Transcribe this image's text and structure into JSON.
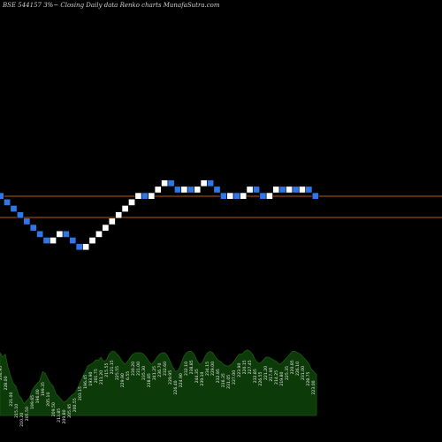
{
  "chart_data": {
    "type": "renko",
    "title": "BSE 544157 3%~  Closing Daily data  Renko  charts MunafaSutra.com",
    "reference_lines": [
      223.0,
      217.0
    ],
    "colors": {
      "background": "#000000",
      "up": "#ffffff",
      "down": "#2f77e6",
      "reference_line": "#b65a1a",
      "volume_fill": "#0c3a08",
      "volume_line": "#1f5a14"
    },
    "bricks": [
      "down",
      "down",
      "down",
      "down",
      "down",
      "down",
      "down",
      "down",
      "up",
      "up",
      "down",
      "down",
      "down",
      "up",
      "up",
      "up",
      "up",
      "up",
      "up",
      "up",
      "up",
      "up",
      "down",
      "up",
      "up",
      "up",
      "down",
      "down",
      "up",
      "down",
      "up",
      "up",
      "down",
      "down",
      "down",
      "up",
      "down",
      "up",
      "up",
      "down",
      "down",
      "up",
      "up",
      "down",
      "up",
      "down",
      "up",
      "down",
      "down"
    ],
    "volume": {
      "values": [
        43,
        40,
        42,
        33,
        27,
        22,
        20,
        14,
        12,
        8,
        10,
        12,
        17,
        20,
        22,
        24,
        30,
        29,
        25,
        22,
        20,
        15,
        13,
        11,
        9,
        10,
        12,
        14,
        15,
        18,
        22,
        26,
        30,
        34,
        35,
        36,
        38,
        38,
        40,
        37,
        38,
        42,
        44,
        44,
        42,
        40,
        37,
        35,
        37,
        40,
        42,
        43,
        43,
        43,
        42,
        40,
        37,
        35,
        37,
        40,
        42,
        43,
        43,
        41,
        37,
        33,
        30,
        31,
        35,
        40,
        43,
        44,
        44,
        42,
        38,
        35,
        36,
        40,
        43,
        44,
        43,
        40,
        38,
        37,
        35,
        34,
        34,
        35,
        37,
        40,
        42,
        42,
        44,
        45,
        44,
        42,
        38,
        36,
        36,
        38,
        40,
        40,
        39,
        38,
        37,
        35,
        36,
        38,
        40,
        42,
        44,
        44,
        43,
        42,
        40,
        38,
        36,
        32,
        30,
        28
      ],
      "labels": [
        "234.95",
        "228.00",
        "221.00",
        "215.10",
        "210.20",
        "205.50",
        "199.65",
        "196.00",
        "199.35",
        "205.10",
        "209.50",
        "213.85",
        "209.80",
        "205.95",
        "200.55",
        "203.15",
        "196.45",
        "193.90",
        "201.75",
        "211.20",
        "215.55",
        "221.15",
        "225.55",
        "229.90",
        "6.55",
        "230.20",
        "231.00",
        "235.30",
        "238.85",
        "241.25",
        "236.70",
        "232.60",
        "229.95",
        "226.40",
        "224.90",
        "232.10",
        "238.85",
        "244.35",
        "239.10",
        "234.15",
        "229.00",
        "232.95",
        "236.35",
        "231.05",
        "227.00",
        "223.90",
        "220.15",
        "227.45",
        "232.85",
        "226.55",
        "221.20",
        "217.95",
        "214.25",
        "219.80",
        "225.35",
        "220.85",
        "226.10",
        "231.00",
        "228.75",
        "223.00"
      ]
    }
  }
}
